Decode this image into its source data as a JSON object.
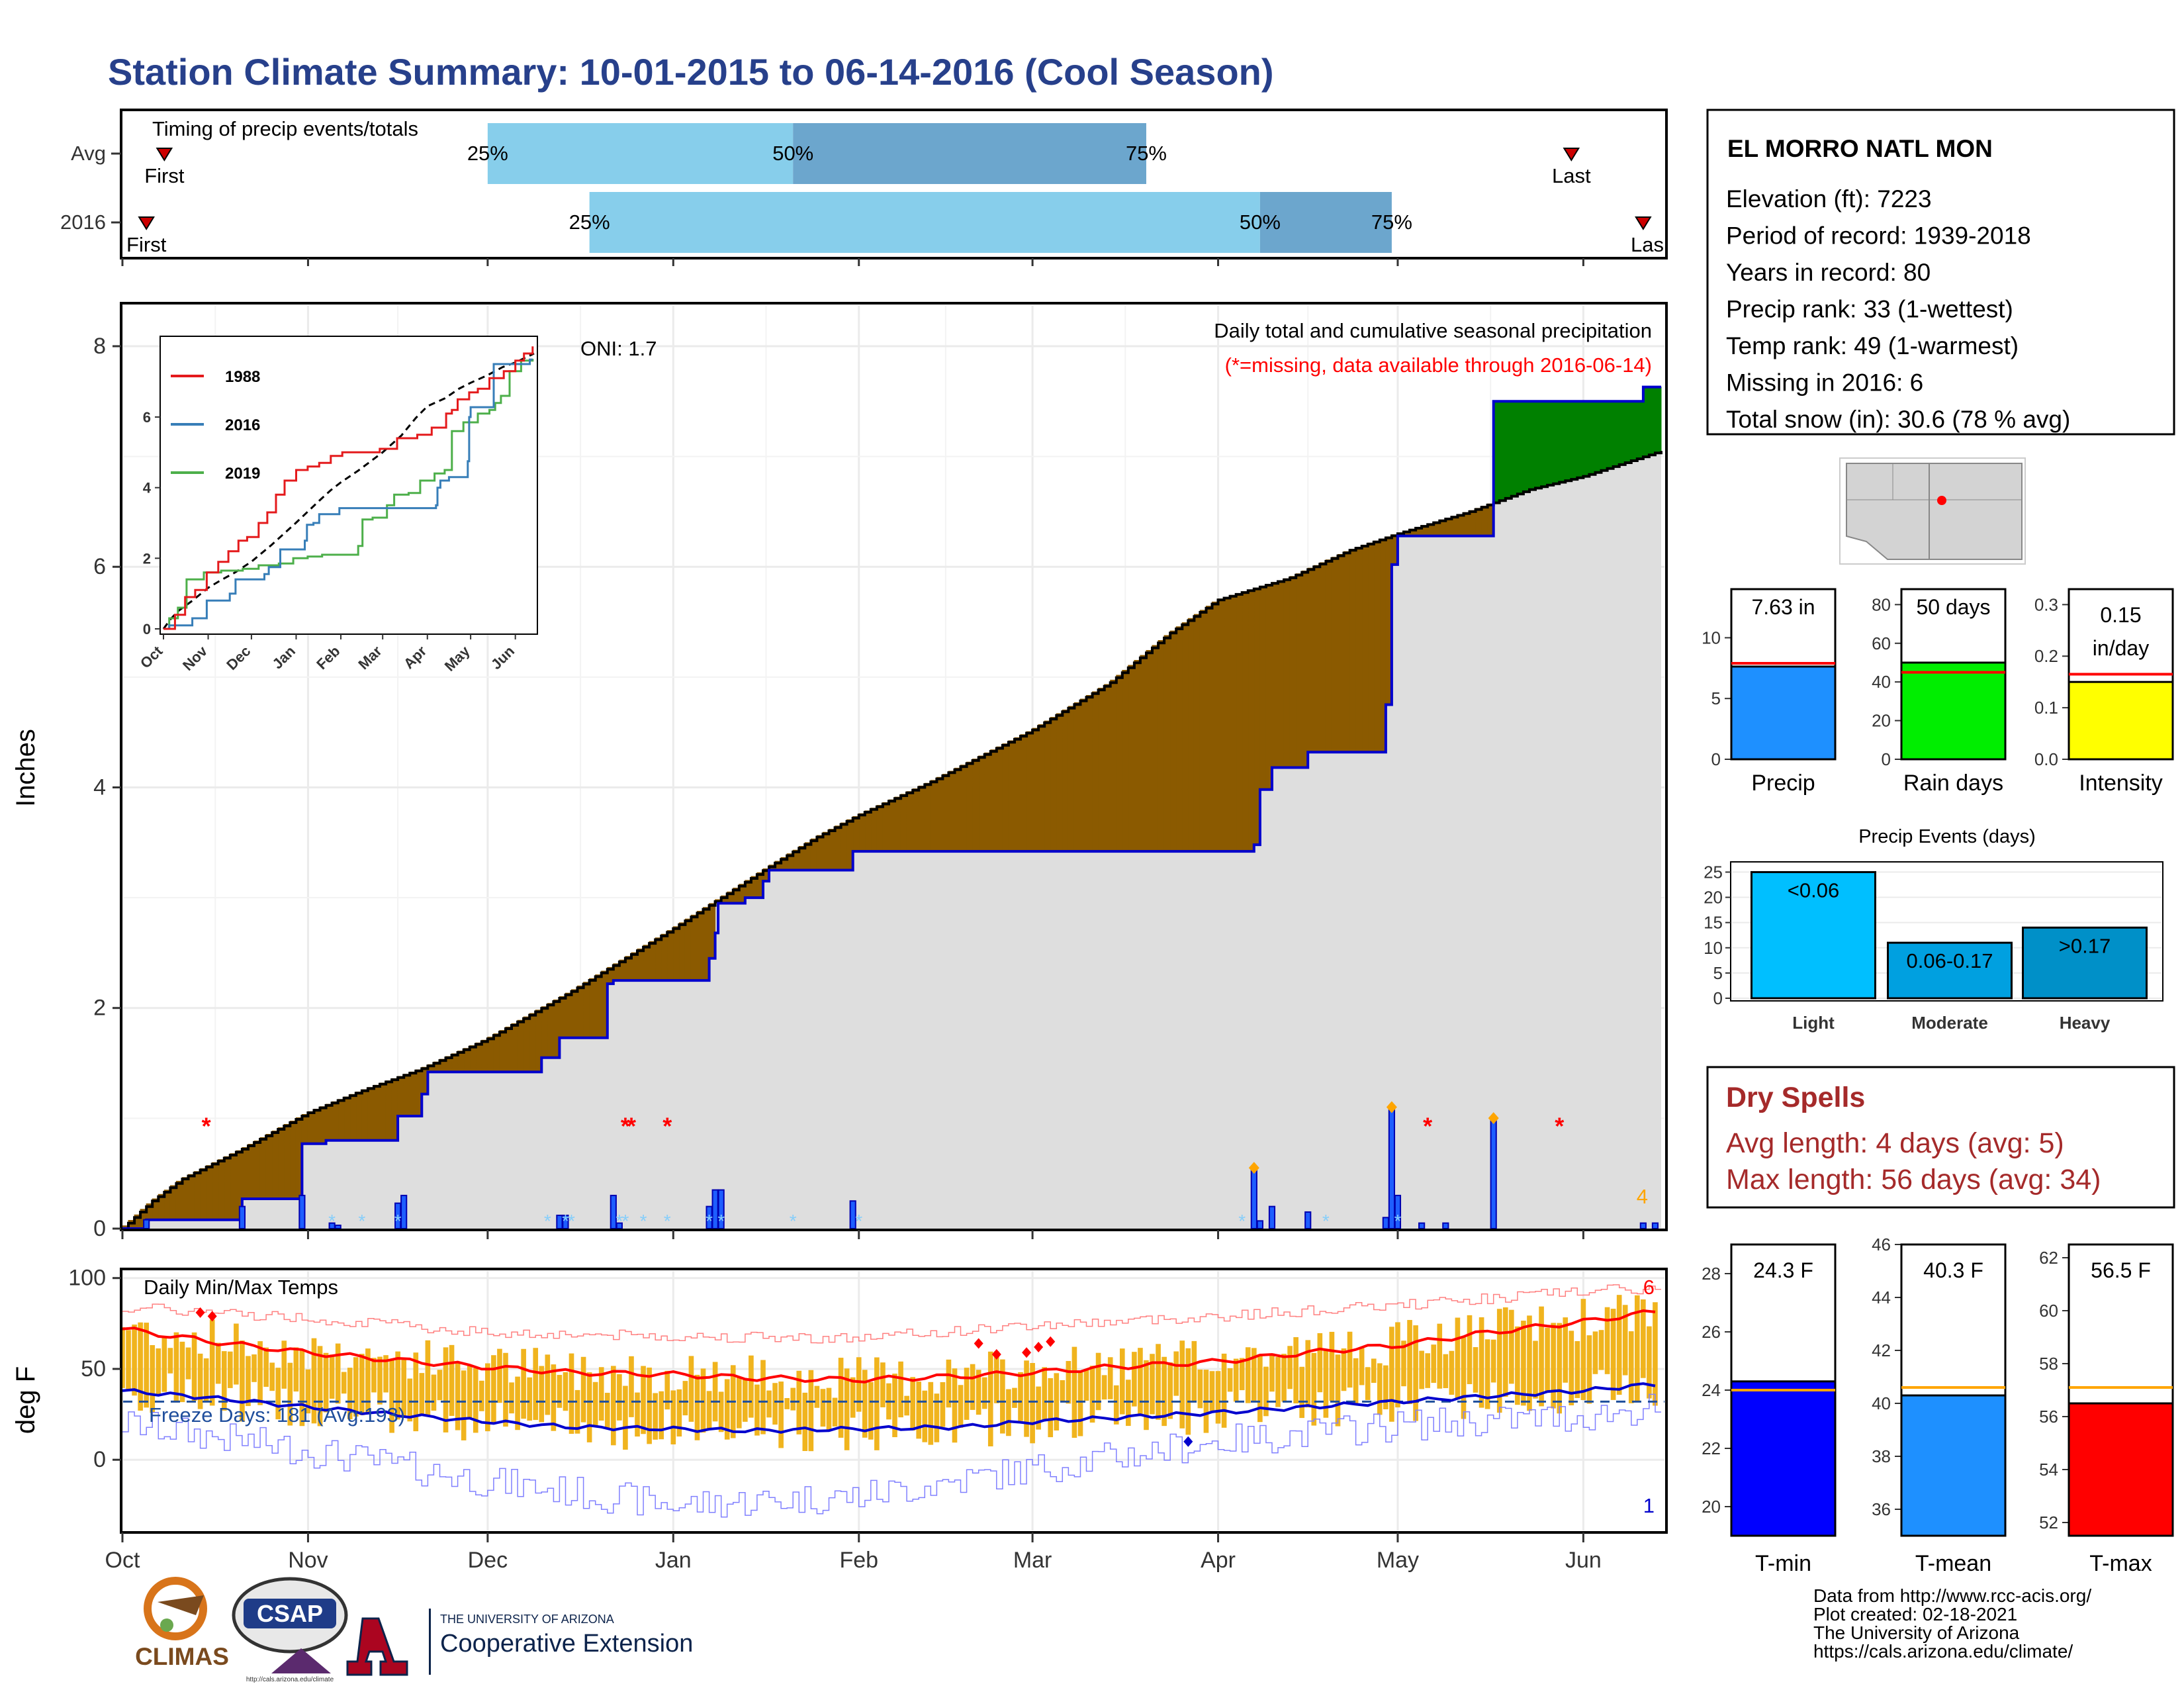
{
  "title": "Station Climate Summary: 10-01-2015 to 06-14-2016 (Cool Season)",
  "station": {
    "name": "EL MORRO NATL MON",
    "lines": [
      "Elevation (ft): 7223",
      "Period of record: 1939-2018",
      "Years in record: 80",
      "Precip rank: 33 (1-wettest)",
      "Temp rank: 49 (1-warmest)",
      "Missing in 2016: 6",
      "Total snow (in): 30.6 (78 % avg)"
    ]
  },
  "timing": {
    "header": "Timing of precip events/totals",
    "rows": [
      {
        "label": "Avg",
        "first_day": 7,
        "last_day": 242,
        "p25_day": 61,
        "p50_day": 112,
        "p75_day": 171,
        "p25_label": "25%",
        "p50_label": "50%",
        "p75_label": "75%",
        "first_label": "First",
        "last_label": "Last"
      },
      {
        "label": "2016",
        "first_day": 4,
        "last_day": 254,
        "p25_day": 78,
        "p50_day": 190,
        "p75_day": 212,
        "p25_label": "25%",
        "p50_label": "50%",
        "p75_label": "75%",
        "first_label": "First",
        "last_label": "Last"
      }
    ]
  },
  "precip_panel": {
    "ylabel": "Inches",
    "oni": "ONI: 1.7",
    "caption": "Daily total and cumulative seasonal precipitation",
    "missing_note": "(*=missing, data available through 2016-06-14)",
    "orange_count": "4",
    "yticks": [
      "0",
      "2",
      "4",
      "6",
      "8"
    ]
  },
  "temp_panel": {
    "ylabel": "deg F",
    "header": "Daily Min/Max Temps",
    "freeze_days": "Freeze Days: 181 (Avg:193)",
    "red_count": "6",
    "blue_count": "1",
    "yticks": [
      "0",
      "50",
      "100"
    ]
  },
  "month_labels": [
    "Oct",
    "Nov",
    "Dec",
    "Jan",
    "Feb",
    "Mar",
    "Apr",
    "May",
    "Jun"
  ],
  "inset": {
    "month_labels": [
      "Oct",
      "Nov",
      "Dec",
      "Jan",
      "Feb",
      "Mar",
      "Apr",
      "May",
      "Jun"
    ],
    "yticks": [
      "0",
      "2",
      "4",
      "6"
    ],
    "legend": [
      {
        "name": "1988",
        "color": "#e41a1c"
      },
      {
        "name": "2016",
        "color": "#377eb8"
      },
      {
        "name": "2019",
        "color": "#4daf4a"
      }
    ]
  },
  "bar_panels": [
    {
      "label": "Precip",
      "value_label": "7.63 in",
      "fill": "#1e90ff",
      "ymax": 14,
      "yticks": [
        "0",
        "5",
        "10"
      ],
      "value": 7.63,
      "avg": 7.9
    },
    {
      "label": "Rain days",
      "value_label": "50 days",
      "fill": "#00ee00",
      "ymax": 88,
      "yticks": [
        "0",
        "20",
        "40",
        "60",
        "80"
      ],
      "value": 50,
      "avg": 45
    },
    {
      "label": "Intensity",
      "value_label": "0.15 in/day",
      "fill": "#ffff00",
      "ymax": 0.33,
      "yticks": [
        "0.0",
        "0.1",
        "0.2",
        "0.3"
      ],
      "value": 0.15,
      "avg": 0.165
    }
  ],
  "events": {
    "title": "Precip Events (days)",
    "categories": [
      "Light",
      "Moderate",
      "Heavy"
    ],
    "bar_labels": [
      "<0.06",
      "0.06-0.17",
      ">0.17"
    ],
    "values": [
      25,
      11,
      14
    ],
    "colors": [
      "#00bfff",
      "#00a0e0",
      "#0090c8"
    ],
    "yticks": [
      "0",
      "5",
      "10",
      "15",
      "20",
      "25"
    ]
  },
  "dry_spells": {
    "title": "Dry Spells",
    "avg": "Avg length: 4 days (avg: 5)",
    "max": "Max length: 56 days (avg: 34)"
  },
  "temp_bars": [
    {
      "label": "T-min",
      "value_label": "24.3 F",
      "fill": "#0000ff",
      "ymin": 19,
      "ymax": 29,
      "yticks": [
        "20",
        "22",
        "24",
        "26",
        "28"
      ],
      "value": 24.3,
      "avg": 24.0
    },
    {
      "label": "T-mean",
      "value_label": "40.3 F",
      "fill": "#1e90ff",
      "ymin": 35,
      "ymax": 46,
      "yticks": [
        "36",
        "38",
        "40",
        "42",
        "44",
        "46"
      ],
      "value": 40.3,
      "avg": 40.6
    },
    {
      "label": "T-max",
      "value_label": "56.5 F",
      "fill": "#ff0000",
      "ymin": 51.5,
      "ymax": 62.5,
      "yticks": [
        "52",
        "54",
        "56",
        "58",
        "60",
        "62"
      ],
      "value": 56.5,
      "avg": 57.1
    }
  ],
  "footer": {
    "lines": [
      "Data from http://www.rcc-acis.org/",
      "Plot created: 02-18-2021",
      "The University of Arizona",
      "https://cals.arizona.edu/climate/"
    ],
    "logo_climas": "CLIMAS",
    "logo_csap": "CSAP",
    "ua_small": "THE UNIVERSITY OF ARIZONA",
    "ua_big": "Cooperative Extension"
  },
  "chart_data": {
    "type": "area",
    "x_unit": "days since 10-01-2015",
    "x_range": [
      0,
      257
    ],
    "month_days": {
      "Oct": 0,
      "Nov": 31,
      "Dec": 61,
      "Jan": 92,
      "Feb": 123,
      "Mar": 152,
      "Apr": 183,
      "May": 213,
      "Jun": 244
    },
    "ylim": [
      0,
      8.3
    ],
    "average_cumulative": {
      "x": [
        0,
        5,
        10,
        20,
        31,
        40,
        50,
        61,
        75,
        92,
        100,
        108,
        116,
        123,
        135,
        152,
        165,
        175,
        183,
        195,
        205,
        213,
        225,
        235,
        244,
        257
      ],
      "y": [
        0,
        0.25,
        0.45,
        0.72,
        1.05,
        1.25,
        1.45,
        1.72,
        2.15,
        2.72,
        3.0,
        3.28,
        3.55,
        3.75,
        4.05,
        4.52,
        4.95,
        5.4,
        5.7,
        5.9,
        6.15,
        6.3,
        6.5,
        6.7,
        6.82,
        7.05
      ]
    },
    "observed_2016_cumulative": {
      "x": [
        0,
        3,
        4,
        20,
        21,
        30,
        31,
        35,
        36,
        47,
        48,
        47.5,
        51,
        52,
        70,
        71,
        74,
        75,
        82,
        83,
        98,
        99,
        99.5,
        100,
        104,
        105,
        123,
        212,
        213,
        229,
        230,
        242,
        257
      ],
      "y": [
        0,
        0,
        0.08,
        0.08,
        0.27,
        0.27,
        0.77,
        0.77,
        0.8,
        0.8,
        1.0,
        1.0,
        1.0,
        1.4,
        1.4,
        1.55,
        1.55,
        1.73,
        1.73,
        2.25,
        2.25,
        2.62,
        2.75,
        2.95,
        2.95,
        3.0,
        3.42,
        4.5,
        6.22,
        6.35,
        7.5,
        7.5,
        7.63
      ]
    },
    "observed_2016_steps": [
      [
        0,
        0
      ],
      [
        4,
        0
      ],
      [
        4,
        0.08
      ],
      [
        20,
        0.08
      ],
      [
        20,
        0.27
      ],
      [
        30,
        0.27
      ],
      [
        30,
        0.77
      ],
      [
        34,
        0.77
      ],
      [
        34,
        0.8
      ],
      [
        46,
        0.8
      ],
      [
        46,
        1.02
      ],
      [
        50,
        1.02
      ],
      [
        50,
        1.22
      ],
      [
        51,
        1.22
      ],
      [
        51,
        1.42
      ],
      [
        70,
        1.42
      ],
      [
        70,
        1.55
      ],
      [
        73,
        1.55
      ],
      [
        73,
        1.73
      ],
      [
        81,
        1.73
      ],
      [
        81,
        2.22
      ],
      [
        82,
        2.22
      ],
      [
        82,
        2.25
      ],
      [
        98,
        2.25
      ],
      [
        98,
        2.45
      ],
      [
        99,
        2.45
      ],
      [
        99,
        2.68
      ],
      [
        99.5,
        2.68
      ],
      [
        99.5,
        2.95
      ],
      [
        104,
        2.95
      ],
      [
        104,
        3.0
      ],
      [
        107,
        3.0
      ],
      [
        107,
        3.15
      ],
      [
        108,
        3.15
      ],
      [
        108,
        3.25
      ],
      [
        122,
        3.25
      ],
      [
        122,
        3.42
      ],
      [
        189,
        3.42
      ],
      [
        189,
        3.48
      ],
      [
        190,
        3.48
      ],
      [
        190,
        3.98
      ],
      [
        192,
        3.98
      ],
      [
        192,
        4.18
      ],
      [
        198,
        4.18
      ],
      [
        198,
        4.32
      ],
      [
        211,
        4.32
      ],
      [
        211,
        4.75
      ],
      [
        212,
        4.75
      ],
      [
        212,
        6.02
      ],
      [
        213,
        6.02
      ],
      [
        213,
        6.28
      ],
      [
        229,
        6.28
      ],
      [
        229,
        7.5
      ],
      [
        254,
        7.5
      ],
      [
        254,
        7.63
      ],
      [
        257,
        7.63
      ]
    ],
    "daily_bars": [
      [
        4,
        0.08
      ],
      [
        20,
        0.2
      ],
      [
        30,
        0.3
      ],
      [
        35,
        0.05
      ],
      [
        36,
        0.03
      ],
      [
        46,
        0.23
      ],
      [
        47,
        0.3
      ],
      [
        73,
        0.12
      ],
      [
        74,
        0.12
      ],
      [
        82,
        0.3
      ],
      [
        83,
        0.05
      ],
      [
        98,
        0.2
      ],
      [
        99,
        0.35
      ],
      [
        100,
        0.35
      ],
      [
        122,
        0.25
      ],
      [
        189,
        0.55
      ],
      [
        190,
        0.07
      ],
      [
        192,
        0.2
      ],
      [
        198,
        0.15
      ],
      [
        211,
        0.1
      ],
      [
        212,
        1.1
      ],
      [
        213,
        0.3
      ],
      [
        217,
        0.05
      ],
      [
        221,
        0.05
      ],
      [
        229,
        1.0
      ],
      [
        254,
        0.05
      ],
      [
        256,
        0.05
      ]
    ],
    "missing_days": [
      14,
      84,
      85,
      91
    ],
    "temps": {
      "ylim": [
        -40,
        105
      ],
      "freeze_line": 32,
      "avg_max": {
        "x": [
          0,
          15,
          31,
          45,
          61,
          75,
          92,
          105,
          123,
          140,
          152,
          165,
          183,
          198,
          213,
          228,
          244,
          257
        ],
        "y": [
          72,
          65,
          59,
          55,
          51,
          48,
          47,
          45,
          44,
          46,
          48,
          51,
          54,
          59,
          63,
          70,
          76,
          82
        ]
      },
      "avg_min": {
        "x": [
          0,
          15,
          31,
          45,
          61,
          75,
          92,
          105,
          123,
          140,
          152,
          165,
          183,
          198,
          213,
          228,
          244,
          257
        ],
        "y": [
          38,
          34,
          29,
          25,
          21,
          18,
          17,
          16,
          17,
          18,
          21,
          23,
          26,
          29,
          32,
          35,
          38,
          42
        ]
      },
      "record_max": {
        "x": [
          0,
          31,
          61,
          92,
          123,
          152,
          183,
          213,
          244,
          257
        ],
        "y": [
          84,
          78,
          70,
          68,
          67,
          74,
          79,
          85,
          93,
          94
        ]
      },
      "record_min": {
        "x": [
          0,
          31,
          61,
          92,
          123,
          152,
          183,
          213,
          244,
          257
        ],
        "y": [
          20,
          5,
          -12,
          -25,
          -20,
          -5,
          10,
          19,
          24,
          29
        ]
      }
    }
  }
}
